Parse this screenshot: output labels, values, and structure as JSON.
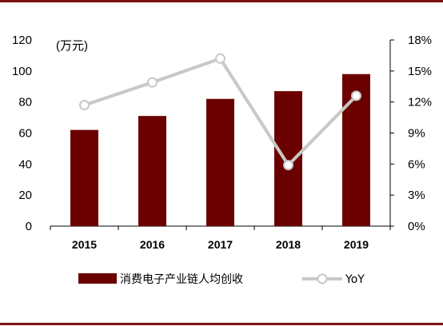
{
  "chart_data": {
    "type": "bar",
    "categories": [
      "2015",
      "2016",
      "2017",
      "2018",
      "2019"
    ],
    "unit_label": "(万元)",
    "series": [
      {
        "name": "消费电子产业链人均创收",
        "type": "bar",
        "axis": "left",
        "values": [
          62,
          71,
          82,
          87,
          98
        ],
        "color": "#6b0000"
      },
      {
        "name": "YoY",
        "type": "line",
        "axis": "right",
        "values": [
          11.7,
          13.9,
          16.2,
          5.9,
          12.6
        ],
        "color": "#c8c8c4"
      }
    ],
    "ylim_left": [
      0,
      120
    ],
    "yticks_left": [
      "0",
      "20",
      "40",
      "60",
      "80",
      "100",
      "120"
    ],
    "ylim_right": [
      0,
      18
    ],
    "yticks_right": [
      "0%",
      "3%",
      "6%",
      "9%",
      "12%",
      "15%",
      "18%"
    ],
    "legend_position": "bottom",
    "grid": false
  }
}
